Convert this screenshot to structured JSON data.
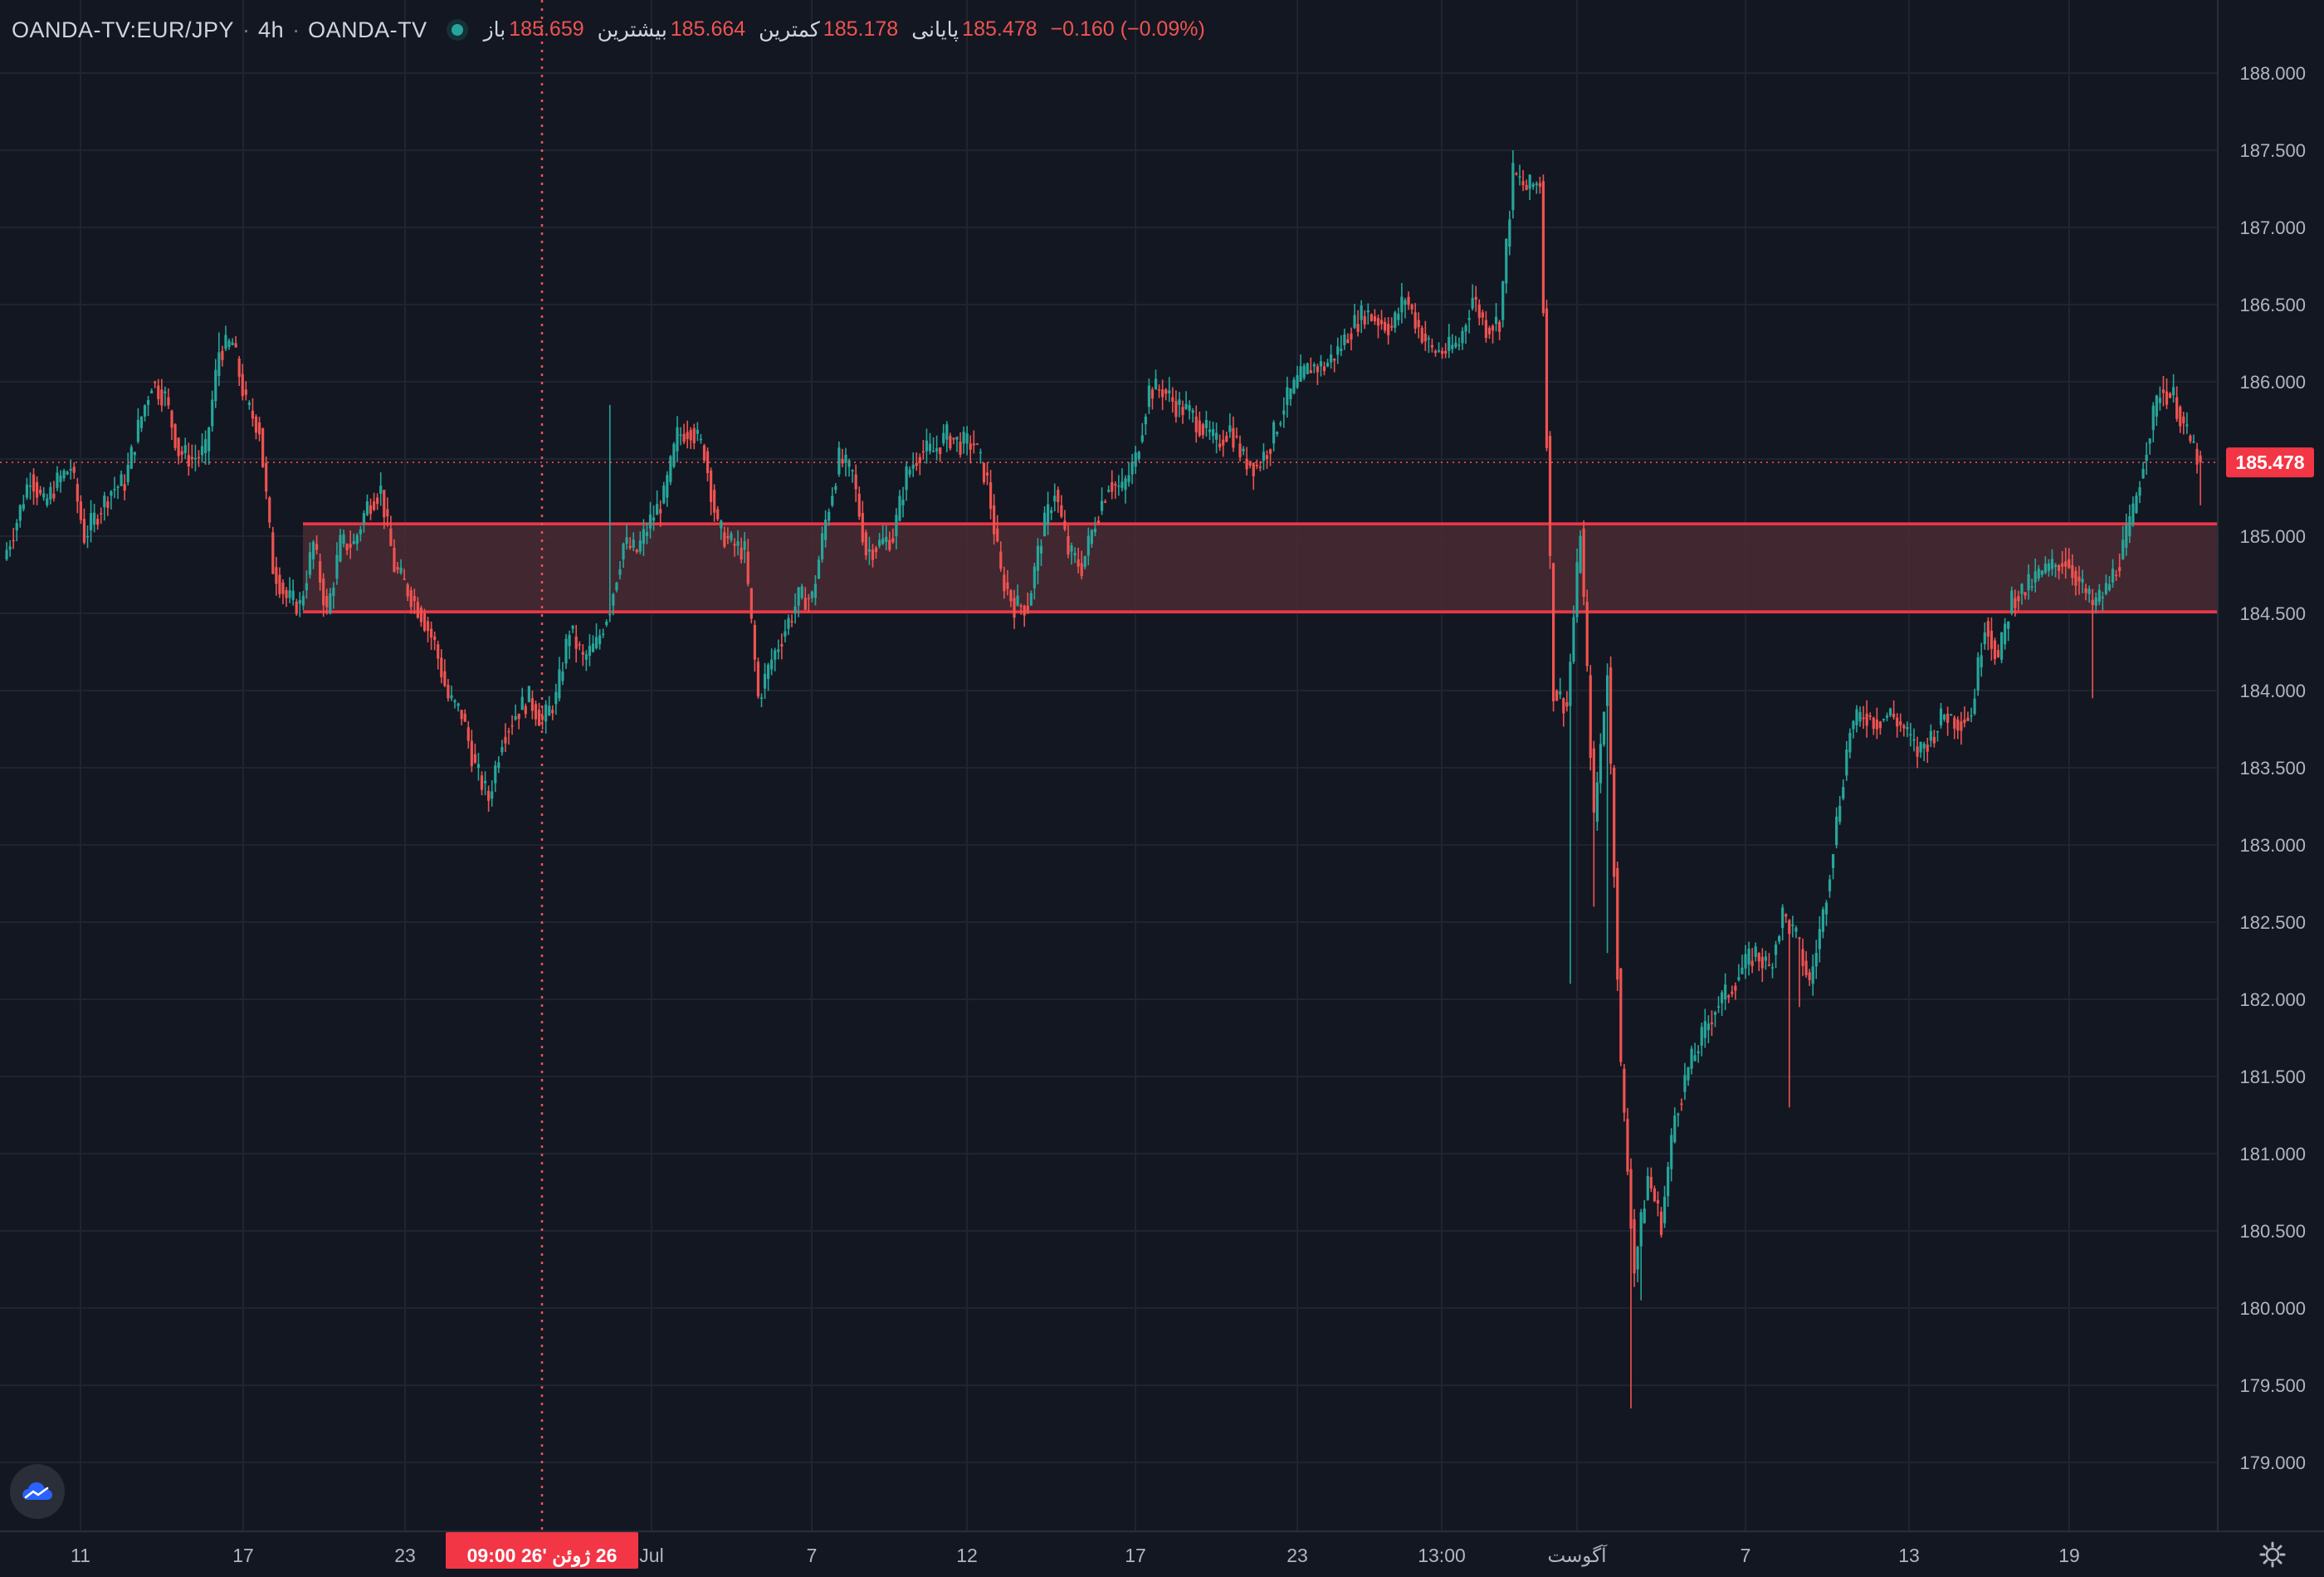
{
  "legend": {
    "symbol": "OANDA-TV:EUR/JPY",
    "interval": "4h",
    "source": "OANDA-TV",
    "open_label": "باز",
    "open": "185.659",
    "high_label": "بیشترین",
    "high": "185.664",
    "low_label": "کمترین",
    "low": "185.178",
    "close_label": "پایانی",
    "close": "185.478",
    "change": "−0.160 (−0.09%)"
  },
  "icons": {
    "status": "status-dot-icon",
    "logo": "tradingview-cloud-logo-icon",
    "settings": "gear-icon"
  },
  "colors": {
    "background": "#131722",
    "up": "#26a69a",
    "down": "#ef5350",
    "zone_fill": "#4a2a33",
    "zone_line": "#f23645",
    "grid": "#1f2430",
    "text": "#b2b5be"
  },
  "crosshair_label": "26 ژوئن '26   09:00",
  "chart_data": {
    "type": "candlestick",
    "title": "",
    "symbol": "OANDA-TV:EUR/JPY",
    "interval": "4h",
    "ylim": [
      178.6,
      188.3
    ],
    "y_ticks": [
      "188.000",
      "187.500",
      "187.000",
      "186.500",
      "186.000",
      "185.500",
      "185.000",
      "184.500",
      "184.000",
      "183.500",
      "183.000",
      "182.500",
      "182.000",
      "181.500",
      "181.000",
      "180.500",
      "180.000",
      "179.500",
      "179.000"
    ],
    "current_price_label": "185.478",
    "current_price": 185.478,
    "zone": {
      "top": 185.08,
      "bottom": 184.51
    },
    "x_ticks": [
      "11",
      "17",
      "23",
      "Jul",
      "7",
      "12",
      "17",
      "23",
      "13:00",
      "آگوست",
      "7",
      "13",
      "19"
    ],
    "path": [
      [
        0,
        184.85
      ],
      [
        4,
        185.1
      ],
      [
        8,
        185.4
      ],
      [
        12,
        185.2
      ],
      [
        16,
        185.35
      ],
      [
        20,
        185.45
      ],
      [
        24,
        185.0
      ],
      [
        28,
        185.15
      ],
      [
        32,
        185.3
      ],
      [
        36,
        185.35
      ],
      [
        40,
        185.7
      ],
      [
        44,
        186.0
      ],
      [
        48,
        185.9
      ],
      [
        52,
        185.55
      ],
      [
        56,
        185.5
      ],
      [
        60,
        185.55
      ],
      [
        64,
        186.2
      ],
      [
        68,
        186.25
      ],
      [
        72,
        185.85
      ],
      [
        76,
        185.7
      ],
      [
        80,
        184.8
      ],
      [
        84,
        184.6
      ],
      [
        88,
        184.55
      ],
      [
        92,
        184.95
      ],
      [
        96,
        184.5
      ],
      [
        100,
        184.95
      ],
      [
        104,
        184.95
      ],
      [
        108,
        185.2
      ],
      [
        112,
        185.3
      ],
      [
        116,
        184.8
      ],
      [
        120,
        184.65
      ],
      [
        124,
        184.5
      ],
      [
        128,
        184.3
      ],
      [
        132,
        183.95
      ],
      [
        136,
        183.85
      ],
      [
        140,
        183.5
      ],
      [
        144,
        183.3
      ],
      [
        148,
        183.7
      ],
      [
        152,
        183.85
      ],
      [
        156,
        183.95
      ],
      [
        160,
        183.8
      ],
      [
        164,
        183.95
      ],
      [
        168,
        184.4
      ],
      [
        172,
        184.2
      ],
      [
        176,
        184.3
      ],
      [
        180,
        184.55
      ],
      [
        184,
        184.95
      ],
      [
        188,
        184.9
      ],
      [
        192,
        185.1
      ],
      [
        196,
        185.25
      ],
      [
        200,
        185.65
      ],
      [
        204,
        185.7
      ],
      [
        208,
        185.55
      ],
      [
        212,
        185.05
      ],
      [
        216,
        184.95
      ],
      [
        220,
        184.9
      ],
      [
        224,
        183.95
      ],
      [
        228,
        184.2
      ],
      [
        232,
        184.4
      ],
      [
        236,
        184.6
      ],
      [
        240,
        184.6
      ],
      [
        244,
        185.1
      ],
      [
        248,
        185.5
      ],
      [
        252,
        185.4
      ],
      [
        256,
        184.9
      ],
      [
        260,
        184.95
      ],
      [
        264,
        185.0
      ],
      [
        268,
        185.4
      ],
      [
        272,
        185.55
      ],
      [
        276,
        185.55
      ],
      [
        280,
        185.65
      ],
      [
        284,
        185.6
      ],
      [
        288,
        185.6
      ],
      [
        292,
        185.35
      ],
      [
        296,
        184.75
      ],
      [
        300,
        184.55
      ],
      [
        304,
        184.55
      ],
      [
        308,
        185.0
      ],
      [
        312,
        185.3
      ],
      [
        316,
        184.9
      ],
      [
        320,
        184.8
      ],
      [
        324,
        185.1
      ],
      [
        328,
        185.35
      ],
      [
        332,
        185.3
      ],
      [
        336,
        185.5
      ],
      [
        340,
        185.95
      ],
      [
        344,
        185.95
      ],
      [
        348,
        185.85
      ],
      [
        352,
        185.8
      ],
      [
        356,
        185.7
      ],
      [
        360,
        185.6
      ],
      [
        364,
        185.7
      ],
      [
        368,
        185.5
      ],
      [
        372,
        185.45
      ],
      [
        376,
        185.6
      ],
      [
        380,
        185.85
      ],
      [
        384,
        186.0
      ],
      [
        388,
        186.1
      ],
      [
        392,
        186.1
      ],
      [
        396,
        186.2
      ],
      [
        400,
        186.35
      ],
      [
        404,
        186.45
      ],
      [
        408,
        186.4
      ],
      [
        412,
        186.35
      ],
      [
        416,
        186.55
      ],
      [
        420,
        186.35
      ],
      [
        424,
        186.2
      ],
      [
        428,
        186.2
      ],
      [
        432,
        186.25
      ],
      [
        436,
        186.55
      ],
      [
        440,
        186.35
      ],
      [
        444,
        186.4
      ],
      [
        448,
        187.35
      ],
      [
        452,
        187.25
      ],
      [
        456,
        187.3
      ],
      [
        460,
        184.0
      ],
      [
        464,
        183.9
      ],
      [
        468,
        185.05
      ],
      [
        472,
        183.15
      ],
      [
        476,
        184.15
      ],
      [
        480,
        181.55
      ],
      [
        484,
        180.25
      ],
      [
        488,
        180.85
      ],
      [
        492,
        180.55
      ],
      [
        496,
        181.25
      ],
      [
        500,
        181.55
      ],
      [
        504,
        181.75
      ],
      [
        508,
        181.95
      ],
      [
        512,
        182.05
      ],
      [
        516,
        182.2
      ],
      [
        520,
        182.3
      ],
      [
        524,
        182.2
      ],
      [
        528,
        182.55
      ],
      [
        532,
        182.4
      ],
      [
        536,
        182.1
      ],
      [
        540,
        182.55
      ],
      [
        544,
        183.15
      ],
      [
        548,
        183.75
      ],
      [
        552,
        183.85
      ],
      [
        556,
        183.8
      ],
      [
        560,
        183.85
      ],
      [
        564,
        183.75
      ],
      [
        568,
        183.6
      ],
      [
        572,
        183.7
      ],
      [
        576,
        183.85
      ],
      [
        580,
        183.8
      ],
      [
        584,
        183.85
      ],
      [
        588,
        184.45
      ],
      [
        592,
        184.2
      ],
      [
        596,
        184.6
      ],
      [
        600,
        184.65
      ],
      [
        604,
        184.75
      ],
      [
        608,
        184.8
      ],
      [
        612,
        184.85
      ],
      [
        616,
        184.7
      ],
      [
        620,
        184.55
      ],
      [
        624,
        184.65
      ],
      [
        628,
        184.85
      ],
      [
        632,
        185.15
      ],
      [
        636,
        185.6
      ],
      [
        640,
        185.95
      ],
      [
        644,
        185.9
      ],
      [
        648,
        185.65
      ],
      [
        652,
        185.48
      ]
    ],
    "wick_extremes": [
      {
        "index": 465,
        "low": 182.1
      },
      {
        "index": 472,
        "low": 182.6
      },
      {
        "index": 476,
        "low": 182.3
      },
      {
        "index": 483,
        "low": 179.35
      },
      {
        "index": 486,
        "low": 180.05
      },
      {
        "index": 530,
        "low": 181.3
      },
      {
        "index": 533,
        "low": 181.95
      },
      {
        "index": 620,
        "low": 183.95
      },
      {
        "index": 448,
        "high": 187.5
      },
      {
        "index": 644,
        "high": 186.02
      },
      {
        "index": 180,
        "high": 185.85
      },
      {
        "index": 64,
        "high": 186.32
      },
      {
        "index": 652,
        "low": 185.2
      }
    ]
  }
}
